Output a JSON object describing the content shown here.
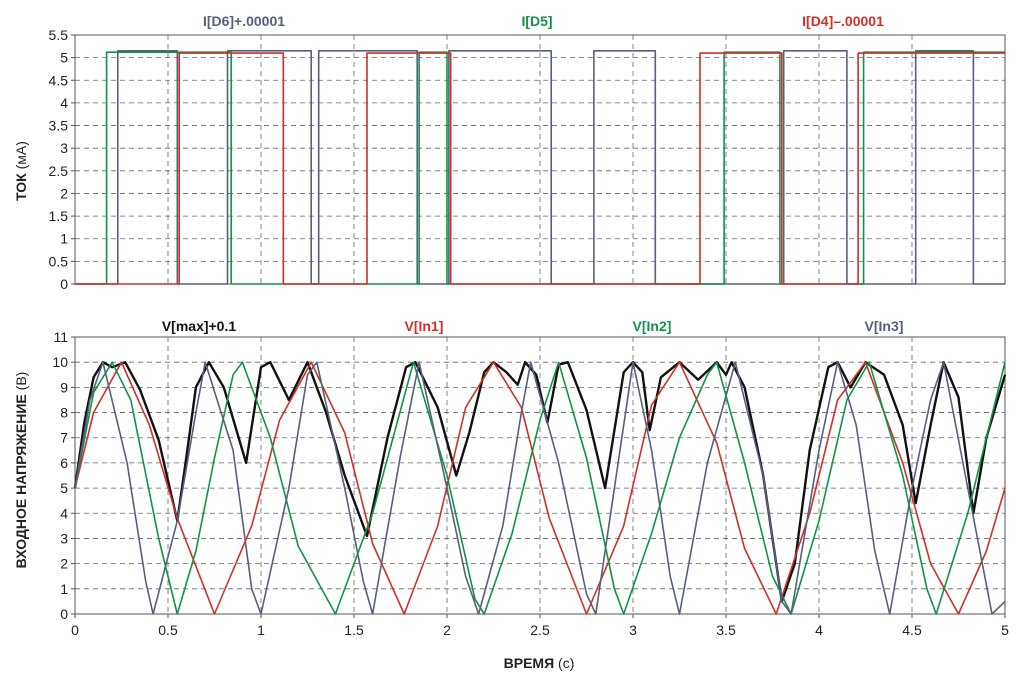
{
  "chart_data": [
    {
      "type": "line",
      "panel": "top",
      "ylabel": {
        "bold": "ТОК",
        "unit": " (мА)"
      },
      "xlim": [
        0,
        5
      ],
      "ylim": [
        0,
        5.5
      ],
      "yticks": [
        "0",
        "0.5",
        "1",
        "1.5",
        "2",
        "2.5",
        "3",
        "3.5",
        "4",
        "4.5",
        "5",
        "5.5"
      ],
      "grid": true,
      "legend_position": "top",
      "series": [
        {
          "name": "I[D6]+.00001",
          "color": "#56607e",
          "values": [
            [
              0,
              0
            ],
            [
              0.23,
              0
            ],
            [
              0.23,
              5.15
            ],
            [
              0.55,
              5.15
            ],
            [
              0.55,
              0
            ],
            [
              0.82,
              0
            ],
            [
              0.82,
              5.15
            ],
            [
              1.27,
              5.15
            ],
            [
              1.27,
              0
            ],
            [
              1.31,
              0
            ],
            [
              1.31,
              5.15
            ],
            [
              1.84,
              5.15
            ],
            [
              1.84,
              0
            ],
            [
              2.01,
              0
            ],
            [
              2.01,
              5.15
            ],
            [
              2.56,
              5.15
            ],
            [
              2.56,
              0
            ],
            [
              2.79,
              0
            ],
            [
              2.79,
              5.15
            ],
            [
              3.12,
              5.15
            ],
            [
              3.12,
              0
            ],
            [
              3.81,
              0
            ],
            [
              3.81,
              5.15
            ],
            [
              4.15,
              5.15
            ],
            [
              4.15,
              0
            ],
            [
              4.52,
              0
            ],
            [
              4.52,
              5.15
            ],
            [
              4.83,
              5.15
            ],
            [
              4.83,
              0
            ],
            [
              5.0,
              0
            ]
          ]
        },
        {
          "name": "I[D5]",
          "color": "#0e9447",
          "values": [
            [
              0,
              0
            ],
            [
              0.17,
              0
            ],
            [
              0.17,
              5.12
            ],
            [
              0.84,
              5.12
            ],
            [
              0.84,
              0
            ],
            [
              1.85,
              0
            ],
            [
              1.85,
              5.12
            ],
            [
              2.0,
              5.12
            ],
            [
              2.0,
              0
            ],
            [
              3.49,
              0
            ],
            [
              3.49,
              5.12
            ],
            [
              3.79,
              5.12
            ],
            [
              3.79,
              0
            ],
            [
              4.24,
              0
            ],
            [
              4.24,
              5.12
            ],
            [
              5.0,
              5.12
            ]
          ]
        },
        {
          "name": "I[D4]–.00001",
          "color": "#d42e27",
          "values": [
            [
              0,
              0
            ],
            [
              0.56,
              0
            ],
            [
              0.56,
              5.1
            ],
            [
              1.12,
              5.1
            ],
            [
              1.12,
              0
            ],
            [
              1.57,
              0
            ],
            [
              1.57,
              5.1
            ],
            [
              2.02,
              5.1
            ],
            [
              2.02,
              0
            ],
            [
              3.36,
              0
            ],
            [
              3.36,
              5.1
            ],
            [
              3.8,
              5.1
            ],
            [
              3.8,
              0
            ],
            [
              4.21,
              0
            ],
            [
              4.21,
              5.1
            ],
            [
              5.0,
              5.1
            ]
          ]
        }
      ]
    },
    {
      "type": "line",
      "panel": "bottom",
      "ylabel": {
        "bold": "ВХОДНОЕ НАПРЯЖЕНИЕ",
        "unit": " (В)"
      },
      "xlabel": {
        "bold": "ВРЕМЯ",
        "unit": " (с)"
      },
      "xlim": [
        0,
        5
      ],
      "ylim": [
        0,
        11
      ],
      "xticks": [
        "0",
        "0.5",
        "1",
        "1.5",
        "2",
        "2.5",
        "3",
        "3.5",
        "4",
        "4.5",
        "5"
      ],
      "yticks": [
        "0",
        "1",
        "2",
        "3",
        "4",
        "5",
        "6",
        "7",
        "8",
        "9",
        "10",
        "11"
      ],
      "grid": true,
      "legend_position": "top",
      "series": [
        {
          "name": "V[max]+0.1",
          "color": "#111111",
          "values": [
            [
              0,
              5.0
            ],
            [
              0.05,
              7.6
            ],
            [
              0.1,
              9.4
            ],
            [
              0.15,
              10.0
            ],
            [
              0.2,
              9.8
            ],
            [
              0.27,
              10.0
            ],
            [
              0.35,
              8.9
            ],
            [
              0.45,
              6.9
            ],
            [
              0.55,
              3.7
            ],
            [
              0.6,
              6.3
            ],
            [
              0.65,
              9.0
            ],
            [
              0.72,
              10.0
            ],
            [
              0.8,
              9.0
            ],
            [
              0.92,
              6.0
            ],
            [
              1.0,
              9.8
            ],
            [
              1.05,
              10.0
            ],
            [
              1.15,
              8.5
            ],
            [
              1.25,
              10.0
            ],
            [
              1.35,
              8.0
            ],
            [
              1.45,
              5.5
            ],
            [
              1.57,
              3.1
            ],
            [
              1.68,
              7.0
            ],
            [
              1.78,
              9.8
            ],
            [
              1.83,
              10.0
            ],
            [
              1.95,
              8.2
            ],
            [
              2.05,
              5.5
            ],
            [
              2.12,
              7.2
            ],
            [
              2.2,
              9.6
            ],
            [
              2.25,
              10.0
            ],
            [
              2.32,
              9.6
            ],
            [
              2.38,
              9.1
            ],
            [
              2.42,
              10.0
            ],
            [
              2.48,
              9.5
            ],
            [
              2.54,
              7.6
            ],
            [
              2.6,
              9.9
            ],
            [
              2.65,
              10.0
            ],
            [
              2.75,
              8.1
            ],
            [
              2.85,
              5.0
            ],
            [
              2.95,
              9.6
            ],
            [
              3.0,
              10.0
            ],
            [
              3.05,
              9.6
            ],
            [
              3.09,
              7.3
            ],
            [
              3.15,
              9.4
            ],
            [
              3.25,
              10.0
            ],
            [
              3.35,
              9.3
            ],
            [
              3.45,
              10.0
            ],
            [
              3.5,
              9.5
            ],
            [
              3.53,
              10.0
            ],
            [
              3.6,
              9.0
            ],
            [
              3.7,
              5.5
            ],
            [
              3.8,
              0.5
            ],
            [
              3.87,
              2.0
            ],
            [
              3.95,
              6.5
            ],
            [
              4.05,
              9.8
            ],
            [
              4.1,
              10.0
            ],
            [
              4.17,
              9.0
            ],
            [
              4.25,
              10.0
            ],
            [
              4.35,
              9.5
            ],
            [
              4.45,
              7.5
            ],
            [
              4.52,
              4.4
            ],
            [
              4.6,
              7.5
            ],
            [
              4.67,
              10.0
            ],
            [
              4.75,
              8.6
            ],
            [
              4.83,
              4.0
            ],
            [
              4.9,
              7.0
            ],
            [
              5.0,
              9.5
            ]
          ]
        },
        {
          "name": "V[In1]",
          "color": "#d42e27",
          "values": [
            [
              0,
              5.0
            ],
            [
              0.1,
              8.0
            ],
            [
              0.25,
              10.0
            ],
            [
              0.4,
              7.5
            ],
            [
              0.55,
              3.8
            ],
            [
              0.75,
              0.0
            ],
            [
              0.95,
              3.5
            ],
            [
              1.1,
              7.7
            ],
            [
              1.27,
              10.0
            ],
            [
              1.45,
              7.2
            ],
            [
              1.6,
              2.8
            ],
            [
              1.77,
              0.0
            ],
            [
              1.95,
              3.5
            ],
            [
              2.1,
              8.2
            ],
            [
              2.25,
              10.0
            ],
            [
              2.4,
              8.2
            ],
            [
              2.55,
              3.8
            ],
            [
              2.75,
              0.0
            ],
            [
              2.95,
              3.5
            ],
            [
              3.1,
              8.3
            ],
            [
              3.25,
              10.0
            ],
            [
              3.45,
              6.8
            ],
            [
              3.6,
              2.6
            ],
            [
              3.77,
              0.0
            ],
            [
              3.95,
              4.0
            ],
            [
              4.1,
              8.5
            ],
            [
              4.25,
              10.0
            ],
            [
              4.45,
              6.0
            ],
            [
              4.6,
              2.0
            ],
            [
              4.75,
              0.0
            ],
            [
              4.9,
              2.5
            ],
            [
              5.0,
              5.0
            ]
          ]
        },
        {
          "name": "V[In2]",
          "color": "#0e9447",
          "values": [
            [
              0,
              5.0
            ],
            [
              0.1,
              8.8
            ],
            [
              0.2,
              10.0
            ],
            [
              0.3,
              8.5
            ],
            [
              0.45,
              3.0
            ],
            [
              0.55,
              0.0
            ],
            [
              0.65,
              2.5
            ],
            [
              0.75,
              6.2
            ],
            [
              0.85,
              9.5
            ],
            [
              0.9,
              10.0
            ],
            [
              1.05,
              7.0
            ],
            [
              1.2,
              2.7
            ],
            [
              1.4,
              0.0
            ],
            [
              1.6,
              4.0
            ],
            [
              1.82,
              10.0
            ],
            [
              2.0,
              5.5
            ],
            [
              2.15,
              0.6
            ],
            [
              2.2,
              0.0
            ],
            [
              2.35,
              3.2
            ],
            [
              2.5,
              7.7
            ],
            [
              2.6,
              10.0
            ],
            [
              2.75,
              6.2
            ],
            [
              2.9,
              1.0
            ],
            [
              2.95,
              0.0
            ],
            [
              3.1,
              3.2
            ],
            [
              3.25,
              7.0
            ],
            [
              3.4,
              9.5
            ],
            [
              3.45,
              10.0
            ],
            [
              3.6,
              6.0
            ],
            [
              3.75,
              1.5
            ],
            [
              3.85,
              0.0
            ],
            [
              4.0,
              3.7
            ],
            [
              4.15,
              8.5
            ],
            [
              4.27,
              10.0
            ],
            [
              4.45,
              5.5
            ],
            [
              4.58,
              1.0
            ],
            [
              4.63,
              0.0
            ],
            [
              4.8,
              4.0
            ],
            [
              4.9,
              7.0
            ],
            [
              5.0,
              10.0
            ]
          ]
        },
        {
          "name": "V[In3]",
          "color": "#56607e",
          "values": [
            [
              0,
              5.0
            ],
            [
              0.08,
              8.5
            ],
            [
              0.15,
              10.0
            ],
            [
              0.28,
              6.0
            ],
            [
              0.38,
              1.3
            ],
            [
              0.42,
              0.0
            ],
            [
              0.55,
              3.7
            ],
            [
              0.65,
              8.0
            ],
            [
              0.7,
              10.0
            ],
            [
              0.85,
              6.5
            ],
            [
              0.95,
              1.0
            ],
            [
              1.0,
              0.0
            ],
            [
              1.15,
              5.0
            ],
            [
              1.25,
              9.5
            ],
            [
              1.3,
              10.0
            ],
            [
              1.45,
              5.0
            ],
            [
              1.55,
              1.3
            ],
            [
              1.6,
              0.0
            ],
            [
              1.75,
              6.3
            ],
            [
              1.85,
              10.0
            ],
            [
              2.0,
              5.0
            ],
            [
              2.1,
              1.5
            ],
            [
              2.17,
              0.0
            ],
            [
              2.3,
              3.5
            ],
            [
              2.4,
              8.0
            ],
            [
              2.45,
              10.0
            ],
            [
              2.6,
              6.0
            ],
            [
              2.75,
              0.8
            ],
            [
              2.8,
              0.0
            ],
            [
              2.9,
              5.0
            ],
            [
              3.0,
              10.0
            ],
            [
              3.1,
              6.5
            ],
            [
              3.2,
              1.5
            ],
            [
              3.25,
              0.0
            ],
            [
              3.4,
              6.0
            ],
            [
              3.55,
              10.0
            ],
            [
              3.7,
              5.5
            ],
            [
              3.8,
              0.5
            ],
            [
              3.85,
              0.0
            ],
            [
              4.0,
              6.5
            ],
            [
              4.1,
              10.0
            ],
            [
              4.2,
              7.5
            ],
            [
              4.3,
              2.5
            ],
            [
              4.38,
              0.0
            ],
            [
              4.5,
              5.0
            ],
            [
              4.6,
              8.5
            ],
            [
              4.67,
              10.0
            ],
            [
              4.8,
              5.0
            ],
            [
              4.93,
              0.0
            ],
            [
              5.0,
              0.5
            ]
          ]
        }
      ]
    }
  ]
}
